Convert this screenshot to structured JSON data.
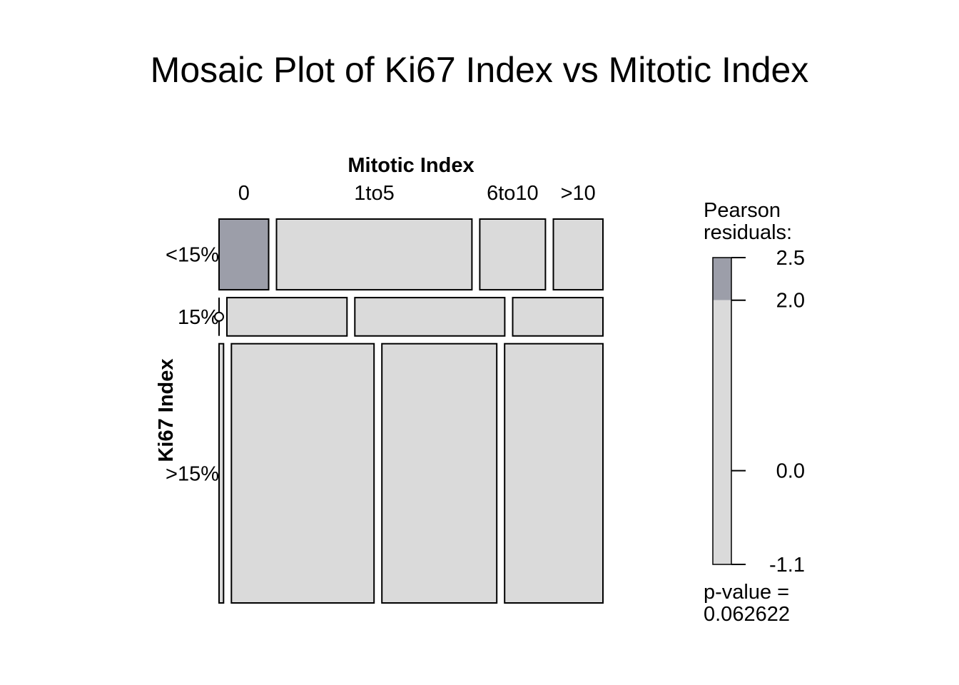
{
  "chart_data": {
    "type": "mosaic",
    "title": "Mosaic Plot of Ki67 Index vs Mitotic Index",
    "xlabel": "Mitotic Index",
    "ylabel": "Ki67 Index",
    "columns": [
      "0",
      "1to5",
      "6to10",
      ">10"
    ],
    "rows": [
      "<15%",
      "15%",
      ">15%"
    ],
    "row_proportions": [
      0.192,
      0.104,
      0.704
    ],
    "cells": [
      {
        "row": "<15%",
        "widths": [
          0.13,
          0.512,
          0.172,
          0.13
        ],
        "residuals": [
          2.5,
          0.0,
          0.0,
          0.0
        ]
      },
      {
        "row": "15%",
        "widths": [
          0.0,
          0.314,
          0.392,
          0.236
        ],
        "residuals": [
          0.0,
          0.0,
          0.0,
          0.0
        ]
      },
      {
        "row": ">15%",
        "widths": [
          0.012,
          0.38,
          0.306,
          0.262
        ],
        "residuals": [
          -1.1,
          0.0,
          0.0,
          0.0
        ]
      }
    ],
    "legend": {
      "title_line1": "Pearson",
      "title_line2": "residuals:",
      "ticks": [
        "2.5",
        "2.0",
        "0.0",
        "-1.1"
      ],
      "tick_values": [
        2.5,
        2.0,
        0.0,
        -1.1
      ],
      "range": [
        -1.1,
        2.5
      ],
      "shade_threshold": 2.0,
      "pvalue_line1": "p-value =",
      "pvalue_line2": "0.062622"
    },
    "colors": {
      "neutral": "#dadada",
      "positive": "#9c9ea9",
      "stroke": "#000000"
    }
  }
}
